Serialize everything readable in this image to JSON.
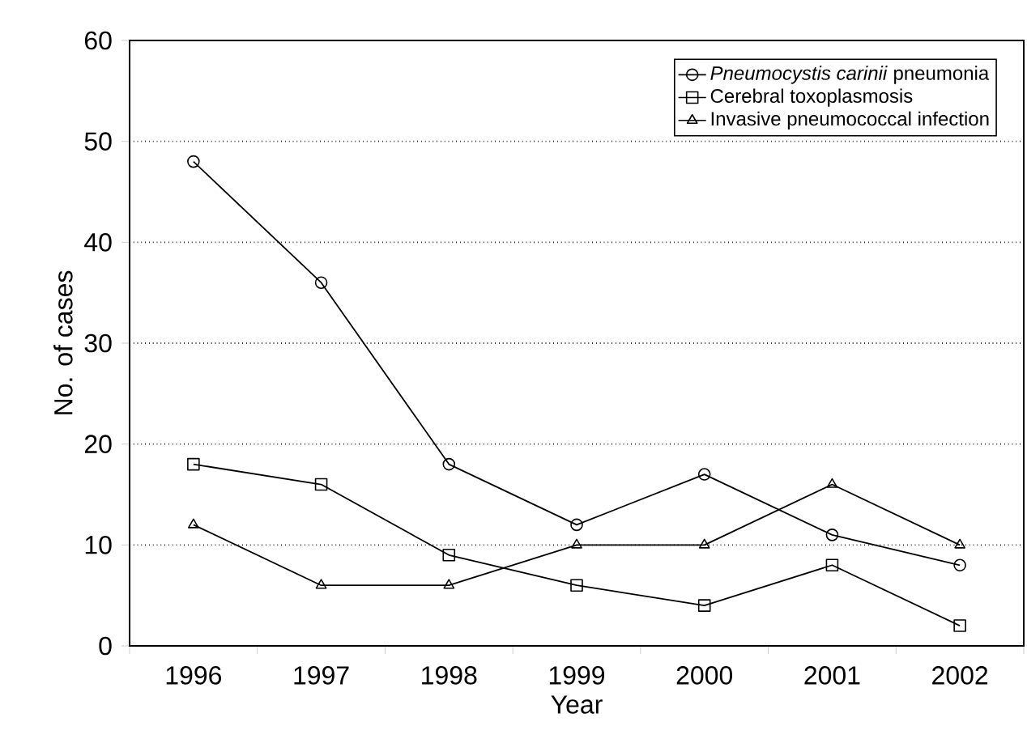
{
  "chart_data": {
    "type": "line",
    "xlabel": "Year",
    "ylabel": "No. of cases",
    "categories": [
      "1996",
      "1997",
      "1998",
      "1999",
      "2000",
      "2001",
      "2002"
    ],
    "series": [
      {
        "name": "*Pneumocystis carinii* pneumonia",
        "color": "#000000",
        "marker": "circle",
        "values": [
          48,
          36,
          18,
          12,
          17,
          11,
          8
        ]
      },
      {
        "name": "Cerebral toxoplasmosis",
        "color": "#000000",
        "marker": "square",
        "values": [
          18,
          16,
          9,
          6,
          4,
          8,
          2
        ]
      },
      {
        "name": "Invasive pneumococcal infection",
        "color": "#000000",
        "marker": "triangle",
        "values": [
          12,
          6,
          6,
          10,
          10,
          16,
          10
        ]
      }
    ],
    "ylim": [
      0,
      60
    ],
    "yticks": [
      0,
      10,
      20,
      30,
      40,
      50,
      60
    ],
    "grid": "y",
    "legend": "top right",
    "line_style": "solid"
  }
}
